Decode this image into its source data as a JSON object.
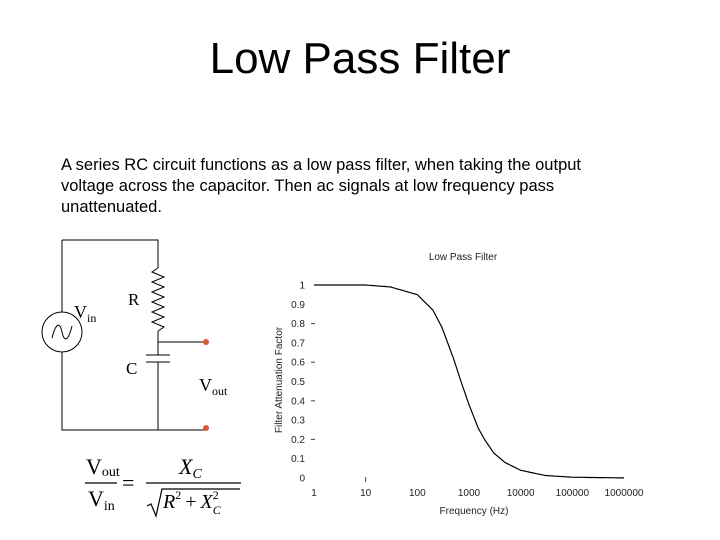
{
  "slide": {
    "title": "Low Pass Filter",
    "paragraph_lines": [
      "A series RC circuit functions as a low pass filter, when taking the output",
      "voltage across the capacitor.  Then ac signals at low frequency pass",
      "unattenuated."
    ]
  },
  "circuit": {
    "vin_main": "V",
    "vin_sub": "in",
    "r_label": "R",
    "c_label": "C",
    "vout_main": "V",
    "vout_sub": "out"
  },
  "formula": {
    "lhs_num_main": "V",
    "lhs_num_sub": "out",
    "lhs_den_main": "V",
    "lhs_den_sub": "in",
    "equals": "=",
    "rhs_num_main": "X",
    "rhs_num_sub": "C",
    "rhs_den_r": "R",
    "rhs_den_r_exp": "2",
    "rhs_den_plus": "+",
    "rhs_den_x": "X",
    "rhs_den_x_exp": "2",
    "rhs_den_x_sub": "C"
  },
  "chart_data": {
    "type": "line",
    "title": "Low Pass Filter",
    "xlabel": "Frequency (Hz)",
    "ylabel": "Filter Attenuation Factor",
    "x_scale": "log",
    "xlim": [
      1,
      1000000
    ],
    "ylim": [
      0,
      1
    ],
    "x_tick_labels": [
      "1",
      "10",
      "100",
      "1000",
      "10000",
      "100000",
      "1000000"
    ],
    "y_tick_labels": [
      "0",
      "0.1",
      "0.2",
      "0.3",
      "0.4",
      "0.5",
      "0.6",
      "0.7",
      "0.8",
      "0.9",
      "1"
    ],
    "grid": false,
    "series": [
      {
        "x": [
          1,
          3,
          10,
          30,
          100,
          200,
          300,
          500,
          700,
          1000,
          1500,
          2000,
          3000,
          5000,
          10000,
          30000,
          100000,
          1000000
        ],
        "y": [
          1.0,
          1.0,
          1.0,
          0.99,
          0.95,
          0.87,
          0.78,
          0.62,
          0.5,
          0.38,
          0.26,
          0.2,
          0.13,
          0.08,
          0.04,
          0.013,
          0.004,
          0.0004
        ]
      }
    ]
  }
}
